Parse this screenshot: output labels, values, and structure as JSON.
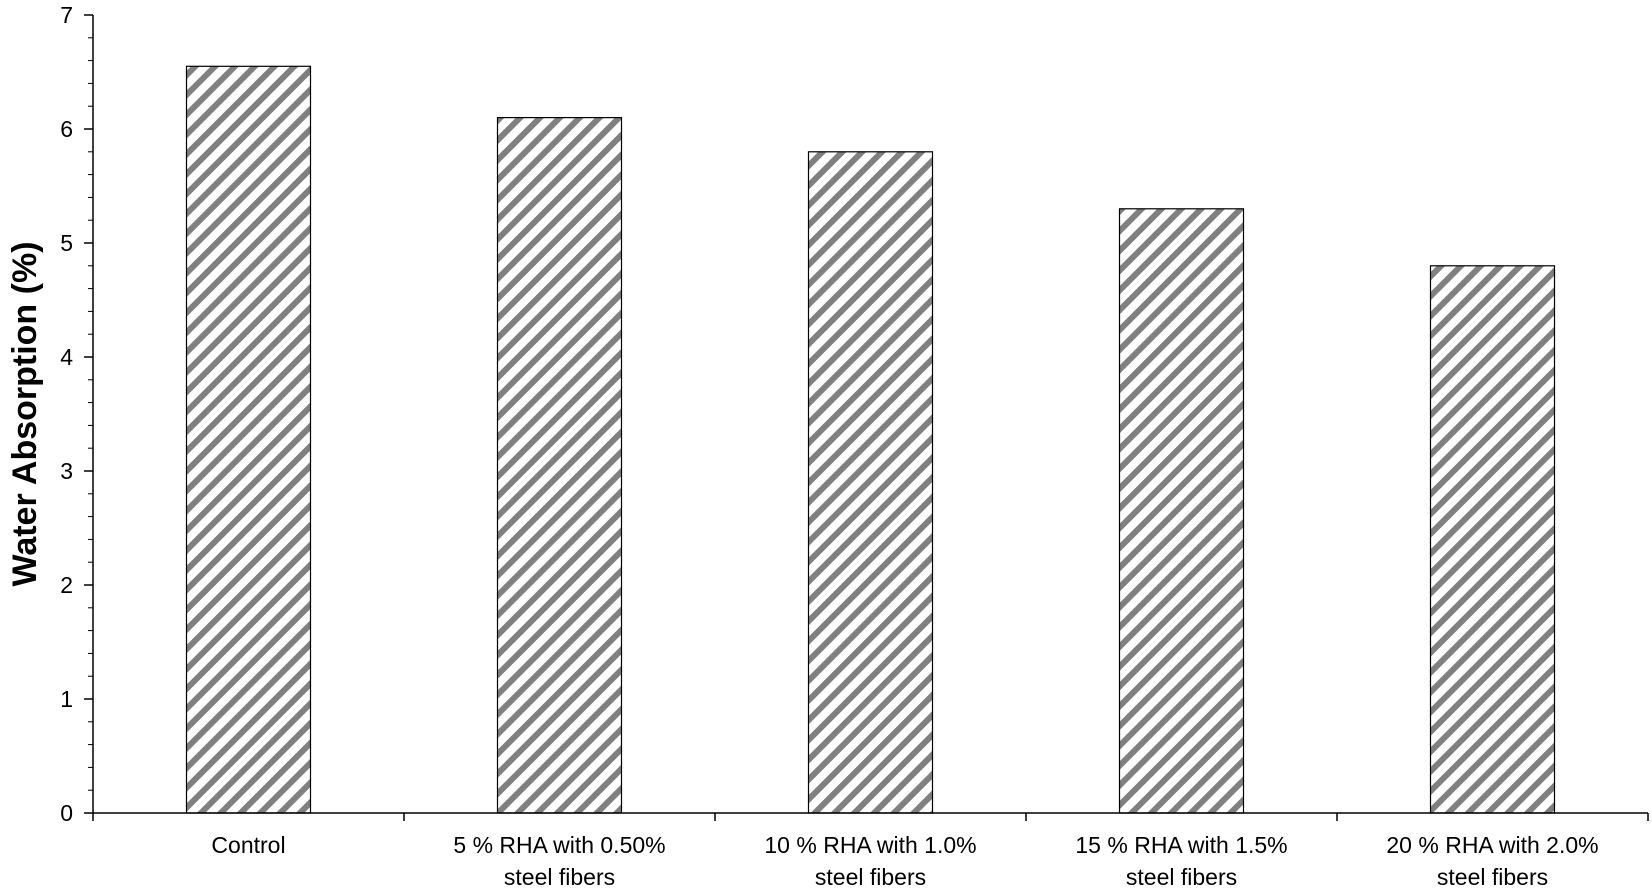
{
  "chart_data": {
    "type": "bar",
    "categories": [
      [
        "Control"
      ],
      [
        "5 % RHA with 0.50%",
        "steel fibers"
      ],
      [
        "10 % RHA with 1.0%",
        "steel fibers"
      ],
      [
        "15 % RHA with 1.5%",
        "steel fibers"
      ],
      [
        "20 % RHA with 2.0%",
        "steel fibers"
      ]
    ],
    "values": [
      6.55,
      6.1,
      5.8,
      5.3,
      4.8
    ],
    "ylabel": "Water Absorption  (%)",
    "xlabel": "",
    "ylim": [
      0,
      7
    ],
    "yticks": [
      "0",
      "1",
      "2",
      "3",
      "4",
      "5",
      "6",
      "7"
    ],
    "minor_ticks_per_major": 5,
    "grid": false,
    "legend": "none",
    "bar_fill": "diagonal hatch",
    "hatch_color": "#808080",
    "bar_edge_color": "#000000"
  }
}
